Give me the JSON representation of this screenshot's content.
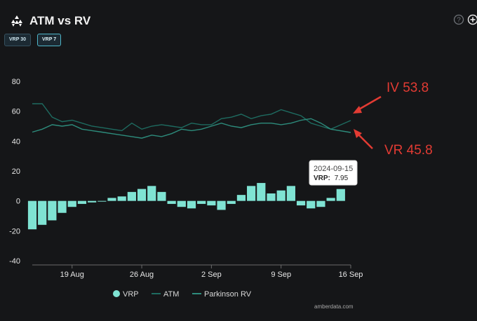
{
  "header": {
    "title": "ATM vs RV",
    "help_icon": "question-circle-icon",
    "add_icon": "plus-circle-icon"
  },
  "toggles": [
    {
      "label": "VRP 30",
      "active": false
    },
    {
      "label": "VRP 7",
      "active": true
    }
  ],
  "tooltip": {
    "date": "2024-09-15",
    "label": "VRP:",
    "value": "7.95"
  },
  "annotations": [
    {
      "text": "IV 53.8",
      "color": "#e23b33"
    },
    {
      "text": "VR 45.8",
      "color": "#e23b33"
    }
  ],
  "credit": "amberdata.com",
  "colors": {
    "background": "#151618",
    "vrp": "#7fe3d3",
    "atm": "#1e6b60",
    "parkinson": "#2d8c7c",
    "arrow": "#e23b33"
  },
  "chart_data": {
    "type": "bar",
    "x_ticks": [
      "19 Aug",
      "26 Aug",
      "2 Sep",
      "9 Sep",
      "16 Sep"
    ],
    "y_ticks": [
      80,
      60,
      40,
      20,
      0,
      -20,
      -40
    ],
    "ylim": [
      -40,
      80
    ],
    "x_range": [
      "2024-08-15",
      "2024-09-16"
    ],
    "grid": false,
    "legend_position": "bottom",
    "series": [
      {
        "name": "VRP",
        "type": "bar",
        "x": [
          "08-15",
          "08-16",
          "08-17",
          "08-18",
          "08-19",
          "08-20",
          "08-21",
          "08-22",
          "08-23",
          "08-24",
          "08-25",
          "08-26",
          "08-27",
          "08-28",
          "08-29",
          "08-30",
          "08-31",
          "09-01",
          "09-02",
          "09-03",
          "09-04",
          "09-05",
          "09-06",
          "09-07",
          "09-08",
          "09-09",
          "09-10",
          "09-11",
          "09-12",
          "09-13",
          "09-14",
          "09-15"
        ],
        "values": [
          -19,
          -16,
          -13,
          -8,
          -4,
          -2,
          -1,
          0,
          2,
          3,
          6,
          8,
          10,
          6,
          -2,
          -4,
          -5,
          -2,
          -3,
          -6,
          -2,
          4,
          10,
          12,
          5,
          7,
          10,
          -3,
          -5,
          -4,
          2,
          7.95
        ]
      },
      {
        "name": "ATM",
        "type": "line",
        "x": [
          "08-15",
          "08-16",
          "08-17",
          "08-18",
          "08-19",
          "08-20",
          "08-21",
          "08-22",
          "08-23",
          "08-24",
          "08-25",
          "08-26",
          "08-27",
          "08-28",
          "08-29",
          "08-30",
          "08-31",
          "09-01",
          "09-02",
          "09-03",
          "09-04",
          "09-05",
          "09-06",
          "09-07",
          "09-08",
          "09-09",
          "09-10",
          "09-11",
          "09-12",
          "09-13",
          "09-14",
          "09-16"
        ],
        "values": [
          65,
          65,
          56,
          53,
          54,
          52,
          50,
          49,
          48,
          47,
          52,
          48,
          50,
          51,
          50,
          49,
          52,
          51,
          51,
          55,
          56,
          58,
          55,
          57,
          58,
          61,
          59,
          57,
          52,
          50,
          48,
          53.8
        ]
      },
      {
        "name": "Parkinson RV",
        "type": "line",
        "x": [
          "08-15",
          "08-16",
          "08-17",
          "08-18",
          "08-19",
          "08-20",
          "08-21",
          "08-22",
          "08-23",
          "08-24",
          "08-25",
          "08-26",
          "08-27",
          "08-28",
          "08-29",
          "08-30",
          "08-31",
          "09-01",
          "09-02",
          "09-03",
          "09-04",
          "09-05",
          "09-06",
          "09-07",
          "09-08",
          "09-09",
          "09-10",
          "09-11",
          "09-12",
          "09-13",
          "09-14",
          "09-16"
        ],
        "values": [
          46,
          48,
          51,
          50,
          51,
          48,
          47,
          46,
          45,
          44,
          43,
          42,
          44,
          43,
          45,
          48,
          47,
          48,
          50,
          52,
          50,
          49,
          51,
          52,
          52,
          51,
          52,
          54,
          55,
          52,
          48,
          45.8
        ]
      }
    ]
  }
}
